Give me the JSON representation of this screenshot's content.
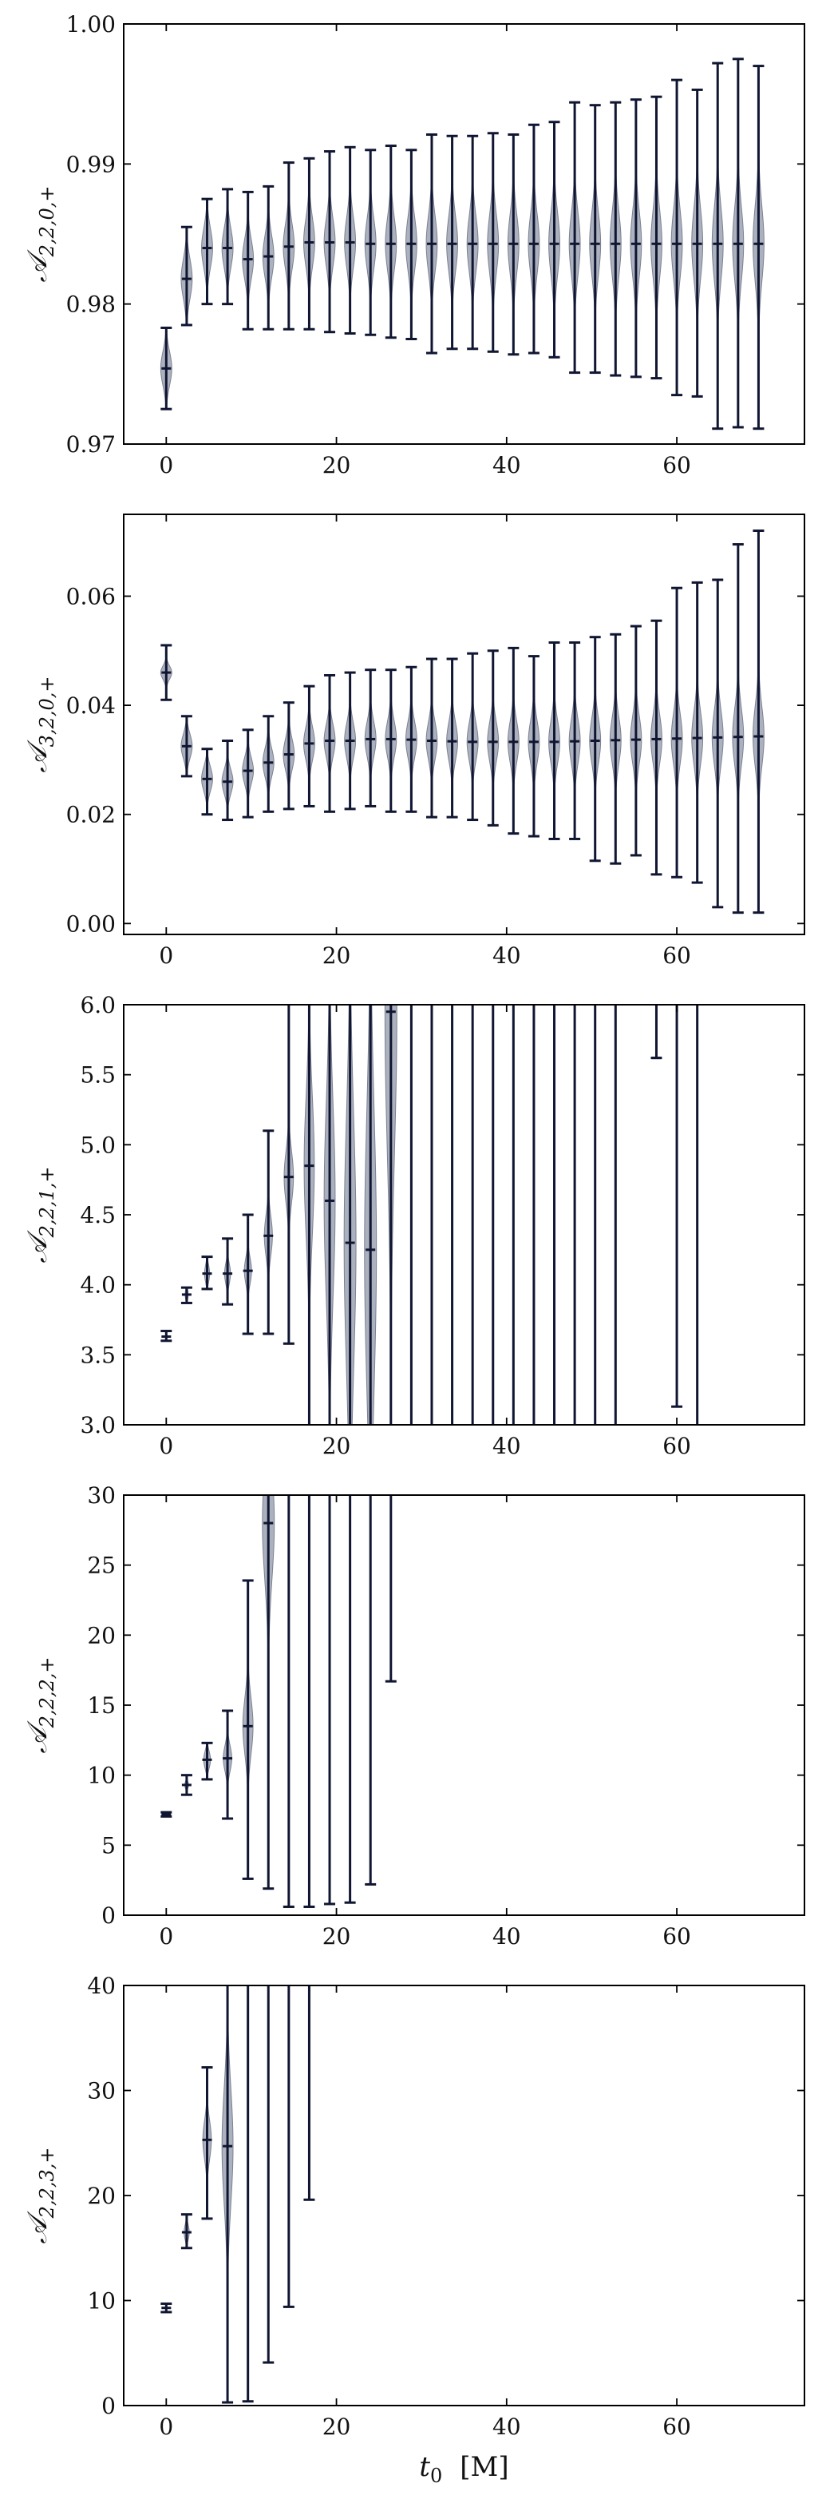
{
  "colors": {
    "violin_fill": "#9ea3b3",
    "violin_edge": "#7c8192",
    "bar": "#101632",
    "axis": "#000000"
  },
  "chart_data": [
    {
      "type": "violin",
      "ylabel": "A_{2,2,0,+}",
      "ylabel_parts": {
        "sym": "𝒜",
        "sub": "2,2,0,+"
      },
      "xlim": [
        -5,
        75
      ],
      "ylim": [
        0.97,
        1.0
      ],
      "xticks": [
        0,
        20,
        40,
        60
      ],
      "xtick_labels": [
        "0",
        "20",
        "40",
        "60"
      ],
      "yticks": [
        0.97,
        0.98,
        0.99,
        1.0
      ],
      "ytick_labels": [
        "0.97",
        "0.98",
        "0.99",
        "1.00"
      ],
      "x": [
        0,
        2.4,
        4.8,
        7.2,
        9.6,
        12,
        14.4,
        16.8,
        19.2,
        21.6,
        24,
        26.4,
        28.8,
        31.2,
        33.6,
        36,
        38.4,
        40.8,
        43.2,
        45.6,
        48,
        50.4,
        52.8,
        55.2,
        57.6,
        60,
        62.4,
        64.8,
        67.2,
        69.6
      ],
      "median": [
        0.9754,
        0.9818,
        0.984,
        0.984,
        0.9832,
        0.9834,
        0.9841,
        0.9844,
        0.9844,
        0.9844,
        0.9843,
        0.9843,
        0.9843,
        0.9843,
        0.9843,
        0.9843,
        0.9843,
        0.9843,
        0.9843,
        0.9843,
        0.9843,
        0.9843,
        0.9843,
        0.9843,
        0.9843,
        0.9843,
        0.9843,
        0.9843,
        0.9843,
        0.9843
      ],
      "min": [
        0.9725,
        0.9785,
        0.98,
        0.98,
        0.9782,
        0.9782,
        0.9782,
        0.9782,
        0.978,
        0.9779,
        0.9778,
        0.9776,
        0.9775,
        0.9765,
        0.9768,
        0.9768,
        0.9766,
        0.9764,
        0.9765,
        0.9762,
        0.9751,
        0.9751,
        0.9749,
        0.9748,
        0.9747,
        0.9735,
        0.9734,
        0.9711,
        0.9712,
        0.9711
      ],
      "max": [
        0.9783,
        0.9855,
        0.9875,
        0.9882,
        0.988,
        0.9884,
        0.9901,
        0.9904,
        0.9909,
        0.9912,
        0.991,
        0.9913,
        0.991,
        0.9921,
        0.992,
        0.992,
        0.9922,
        0.9921,
        0.9928,
        0.993,
        0.9944,
        0.9942,
        0.9944,
        0.9946,
        0.9948,
        0.996,
        0.9953,
        0.9972,
        0.9975,
        0.997
      ],
      "spread": [
        0.0012,
        0.0014,
        0.0014,
        0.0014,
        0.0014,
        0.0015,
        0.0016,
        0.0017,
        0.0017,
        0.0018,
        0.0018,
        0.0019,
        0.0019,
        0.002,
        0.002,
        0.002,
        0.0021,
        0.0021,
        0.0021,
        0.0022,
        0.0022,
        0.0022,
        0.0023,
        0.0023,
        0.0024,
        0.0024,
        0.0025,
        0.0026,
        0.0026,
        0.0027
      ],
      "width": [
        1.3,
        1.3,
        1.3,
        1.3,
        1.3,
        1.3,
        1.3,
        1.3,
        1.3,
        1.3,
        1.3,
        1.3,
        1.3,
        1.3,
        1.3,
        1.3,
        1.3,
        1.3,
        1.3,
        1.3,
        1.3,
        1.3,
        1.3,
        1.3,
        1.3,
        1.3,
        1.3,
        1.3,
        1.3,
        1.3
      ]
    },
    {
      "type": "violin",
      "ylabel": "A_{3,2,0,+}",
      "ylabel_parts": {
        "sym": "𝒜",
        "sub": "3,2,0,+"
      },
      "xlim": [
        -5,
        75
      ],
      "ylim": [
        -0.002,
        0.075
      ],
      "xticks": [
        0,
        20,
        40,
        60
      ],
      "xtick_labels": [
        "0",
        "20",
        "40",
        "60"
      ],
      "yticks": [
        0.0,
        0.02,
        0.04,
        0.06
      ],
      "ytick_labels": [
        "0.00",
        "0.02",
        "0.04",
        "0.06"
      ],
      "x": [
        0,
        2.4,
        4.8,
        7.2,
        9.6,
        12,
        14.4,
        16.8,
        19.2,
        21.6,
        24,
        26.4,
        28.8,
        31.2,
        33.6,
        36,
        38.4,
        40.8,
        43.2,
        45.6,
        48,
        50.4,
        52.8,
        55.2,
        57.6,
        60,
        62.4,
        64.8,
        67.2,
        69.6
      ],
      "median": [
        0.046,
        0.0325,
        0.0265,
        0.026,
        0.028,
        0.0295,
        0.031,
        0.033,
        0.0335,
        0.0335,
        0.0338,
        0.0338,
        0.0337,
        0.0335,
        0.0334,
        0.0333,
        0.0333,
        0.0333,
        0.0333,
        0.0333,
        0.0334,
        0.0335,
        0.0336,
        0.0337,
        0.0338,
        0.0339,
        0.034,
        0.0341,
        0.0342,
        0.0343
      ],
      "min": [
        0.041,
        0.027,
        0.02,
        0.019,
        0.0195,
        0.0205,
        0.021,
        0.0215,
        0.0205,
        0.021,
        0.0215,
        0.0205,
        0.0205,
        0.0195,
        0.0195,
        0.019,
        0.018,
        0.0165,
        0.016,
        0.0155,
        0.0155,
        0.0115,
        0.011,
        0.0125,
        0.009,
        0.0085,
        0.0075,
        0.003,
        0.002,
        0.002
      ],
      "max": [
        0.051,
        0.038,
        0.032,
        0.0335,
        0.0355,
        0.038,
        0.0405,
        0.0435,
        0.0455,
        0.046,
        0.0465,
        0.0465,
        0.047,
        0.0485,
        0.0485,
        0.0495,
        0.05,
        0.0505,
        0.049,
        0.0515,
        0.0515,
        0.0525,
        0.053,
        0.0545,
        0.0555,
        0.0615,
        0.0625,
        0.063,
        0.0695,
        0.072
      ],
      "spread": [
        0.0012,
        0.0022,
        0.0022,
        0.0022,
        0.0024,
        0.0026,
        0.0028,
        0.003,
        0.003,
        0.0032,
        0.0032,
        0.0033,
        0.0033,
        0.0034,
        0.0035,
        0.0035,
        0.0036,
        0.0037,
        0.0038,
        0.0039,
        0.004,
        0.0041,
        0.0042,
        0.0043,
        0.0044,
        0.0046,
        0.0048,
        0.005,
        0.0052,
        0.0055
      ],
      "width": [
        1.3,
        1.3,
        1.3,
        1.3,
        1.3,
        1.3,
        1.3,
        1.3,
        1.3,
        1.3,
        1.3,
        1.3,
        1.3,
        1.3,
        1.3,
        1.3,
        1.3,
        1.3,
        1.3,
        1.3,
        1.3,
        1.3,
        1.3,
        1.3,
        1.3,
        1.3,
        1.3,
        1.3,
        1.3,
        1.3
      ]
    },
    {
      "type": "violin",
      "ylabel": "A_{2,2,1,+}",
      "ylabel_parts": {
        "sym": "𝒜",
        "sub": "2,2,1,+"
      },
      "xlim": [
        -5,
        75
      ],
      "ylim": [
        3.0,
        6.0
      ],
      "xticks": [
        0,
        20,
        40,
        60
      ],
      "xtick_labels": [
        "0",
        "20",
        "40",
        "60"
      ],
      "yticks": [
        3.0,
        3.5,
        4.0,
        4.5,
        5.0,
        5.5,
        6.0
      ],
      "ytick_labels": [
        "3.0",
        "3.5",
        "4.0",
        "4.5",
        "5.0",
        "5.5",
        "6.0"
      ],
      "x": [
        0,
        2.4,
        4.8,
        7.2,
        9.6,
        12,
        14.4,
        16.8,
        19.2,
        21.6,
        24,
        26.4,
        28.8,
        31.2,
        33.6,
        36,
        38.4,
        40.8,
        43.2,
        45.6,
        48,
        50.4,
        52.8,
        55.2,
        57.6,
        60,
        62.4,
        64.8,
        67.2,
        69.6
      ],
      "median": [
        3.63,
        3.93,
        4.08,
        4.08,
        4.1,
        4.35,
        4.77,
        4.85,
        4.6,
        4.3,
        4.25,
        5.95,
        null,
        null,
        null,
        null,
        null,
        null,
        null,
        null,
        null,
        null,
        null,
        null,
        5.62,
        null,
        null,
        null,
        null,
        null
      ],
      "min": [
        3.6,
        3.87,
        3.97,
        3.86,
        3.65,
        3.65,
        3.58,
        2.0,
        2.0,
        2.0,
        2.0,
        2.0,
        2.0,
        2.0,
        2.0,
        2.0,
        2.0,
        2.0,
        2.0,
        2.0,
        2.0,
        2.0,
        2.0,
        null,
        5.62,
        3.13,
        2.0,
        null,
        null,
        null
      ],
      "max": [
        3.67,
        3.98,
        4.2,
        4.33,
        4.5,
        5.1,
        7.0,
        7.0,
        7.0,
        7.0,
        7.0,
        7.0,
        7.0,
        7.0,
        7.0,
        7.0,
        7.0,
        7.0,
        7.0,
        7.0,
        7.0,
        7.0,
        7.0,
        null,
        7.0,
        7.0,
        7.0,
        null,
        null,
        null
      ],
      "spread": [
        0.0,
        0.04,
        0.06,
        0.07,
        0.09,
        0.14,
        0.18,
        0.5,
        0.7,
        0.9,
        1.0,
        1.0,
        1.0,
        1.0,
        0.6,
        0.0,
        0.0,
        0.0,
        0.0,
        0.0,
        0.0,
        0.0,
        0.0,
        0.0,
        0.0,
        0.0,
        0.0,
        0.0,
        0.0,
        0.0
      ],
      "width": [
        0.0,
        0.35,
        0.6,
        0.7,
        0.85,
        0.95,
        1.1,
        1.2,
        1.3,
        1.4,
        1.4,
        1.4,
        1.4,
        1.4,
        0.9,
        0.0,
        0.0,
        0.0,
        0.0,
        0.0,
        0.0,
        0.0,
        0.0,
        0.0,
        0.0,
        0.0,
        0.0,
        0.0,
        0.0,
        0.0
      ]
    },
    {
      "type": "violin",
      "ylabel": "A_{2,2,2,+}",
      "ylabel_parts": {
        "sym": "𝒜",
        "sub": "2,2,2,+"
      },
      "xlim": [
        -5,
        75
      ],
      "ylim": [
        0,
        30
      ],
      "xticks": [
        0,
        20,
        40,
        60
      ],
      "xtick_labels": [
        "0",
        "20",
        "40",
        "60"
      ],
      "yticks": [
        0,
        5,
        10,
        15,
        20,
        25,
        30
      ],
      "ytick_labels": [
        "0",
        "5",
        "10",
        "15",
        "20",
        "25",
        "30"
      ],
      "x": [
        0,
        2.4,
        4.8,
        7.2,
        9.6,
        12,
        14.4,
        16.8,
        19.2,
        21.6,
        24,
        26.4,
        28.8,
        31.2,
        33.6,
        36,
        38.4,
        40.8,
        43.2,
        45.6,
        48,
        50.4,
        52.8,
        55.2,
        57.6,
        60,
        62.4,
        64.8,
        67.2,
        69.6
      ],
      "median": [
        7.2,
        9.3,
        11.1,
        11.2,
        13.5,
        28.0,
        null,
        null,
        null,
        null,
        null,
        null,
        null,
        null,
        null,
        null,
        null,
        null,
        null,
        null,
        null,
        null,
        null,
        null,
        null,
        null,
        null,
        null,
        null,
        null
      ],
      "min": [
        7.05,
        8.6,
        9.7,
        6.9,
        2.6,
        1.9,
        0.6,
        0.6,
        0.8,
        0.9,
        2.2,
        16.7,
        null,
        null,
        null,
        null,
        null,
        null,
        null,
        null,
        null,
        null,
        null,
        null,
        null,
        null,
        null,
        null,
        null,
        null
      ],
      "max": [
        7.35,
        10.0,
        12.3,
        14.6,
        23.9,
        35.0,
        35.0,
        35.0,
        35.0,
        35.0,
        35.0,
        35.0,
        null,
        null,
        null,
        null,
        null,
        null,
        null,
        null,
        null,
        null,
        null,
        null,
        null,
        null,
        null,
        null,
        null,
        null
      ],
      "spread": [
        0.0,
        0.25,
        0.6,
        0.9,
        2.0,
        4.0,
        0.0,
        0.0,
        0.0,
        0.0,
        0.0,
        0.0,
        0.0,
        0.0,
        0.0,
        0.0,
        0.0,
        0.0,
        0.0,
        0.0,
        0.0,
        0.0,
        0.0,
        0.0,
        0.0,
        0.0,
        0.0,
        0.0,
        0.0,
        0.0
      ],
      "width": [
        0.0,
        0.45,
        0.8,
        1.0,
        1.2,
        1.4,
        0.0,
        0.0,
        0.0,
        0.0,
        0.0,
        0.0,
        0.0,
        0.0,
        0.0,
        0.0,
        0.0,
        0.0,
        0.0,
        0.0,
        0.0,
        0.0,
        0.0,
        0.0,
        0.0,
        0.0,
        0.0,
        0.0,
        0.0,
        0.0
      ]
    },
    {
      "type": "violin",
      "ylabel": "A_{2,2,3,+}",
      "ylabel_parts": {
        "sym": "𝒜",
        "sub": "2,2,3,+"
      },
      "xlabel": "t_0 [M]",
      "xlabel_parts": {
        "sym": "t",
        "sub": "0",
        "unit": "[M]"
      },
      "xlim": [
        -5,
        75
      ],
      "ylim": [
        0,
        40
      ],
      "xticks": [
        0,
        20,
        40,
        60
      ],
      "xtick_labels": [
        "0",
        "20",
        "40",
        "60"
      ],
      "yticks": [
        0,
        10,
        20,
        30,
        40
      ],
      "ytick_labels": [
        "0",
        "10",
        "20",
        "30",
        "40"
      ],
      "x": [
        0,
        2.4,
        4.8,
        7.2,
        9.6,
        12,
        14.4,
        16.8,
        19.2,
        21.6,
        24,
        26.4,
        28.8,
        31.2,
        33.6,
        36,
        38.4,
        40.8,
        43.2,
        45.6,
        48,
        50.4,
        52.8,
        55.2,
        57.6,
        60,
        62.4,
        64.8,
        67.2,
        69.6
      ],
      "median": [
        9.3,
        16.5,
        25.3,
        24.7,
        null,
        null,
        null,
        null,
        null,
        null,
        null,
        null,
        null,
        null,
        null,
        null,
        null,
        null,
        null,
        null,
        null,
        null,
        null,
        null,
        null,
        null,
        null,
        null,
        null,
        null
      ],
      "min": [
        8.9,
        15.0,
        17.8,
        0.3,
        0.4,
        4.1,
        9.4,
        19.6,
        null,
        null,
        null,
        null,
        null,
        null,
        null,
        null,
        null,
        null,
        null,
        null,
        null,
        null,
        null,
        null,
        null,
        null,
        null,
        null,
        null,
        null
      ],
      "max": [
        9.7,
        18.2,
        32.2,
        45.0,
        45.0,
        45.0,
        45.0,
        45.0,
        null,
        null,
        null,
        null,
        null,
        null,
        null,
        null,
        null,
        null,
        null,
        null,
        null,
        null,
        null,
        null,
        null,
        null,
        null,
        null,
        null,
        null
      ],
      "spread": [
        0.0,
        0.7,
        1.8,
        5.5,
        0.0,
        0.0,
        0.0,
        0.0,
        0.0,
        0.0,
        0.0,
        0.0,
        0.0,
        0.0,
        0.0,
        0.0,
        0.0,
        0.0,
        0.0,
        0.0,
        0.0,
        0.0,
        0.0,
        0.0,
        0.0,
        0.0,
        0.0,
        0.0,
        0.0,
        0.0
      ],
      "width": [
        0.0,
        0.6,
        1.0,
        1.3,
        0.0,
        0.0,
        0.0,
        0.0,
        0.0,
        0.0,
        0.0,
        0.0,
        0.0,
        0.0,
        0.0,
        0.0,
        0.0,
        0.0,
        0.0,
        0.0,
        0.0,
        0.0,
        0.0,
        0.0,
        0.0,
        0.0,
        0.0,
        0.0,
        0.0,
        0.0
      ]
    }
  ]
}
